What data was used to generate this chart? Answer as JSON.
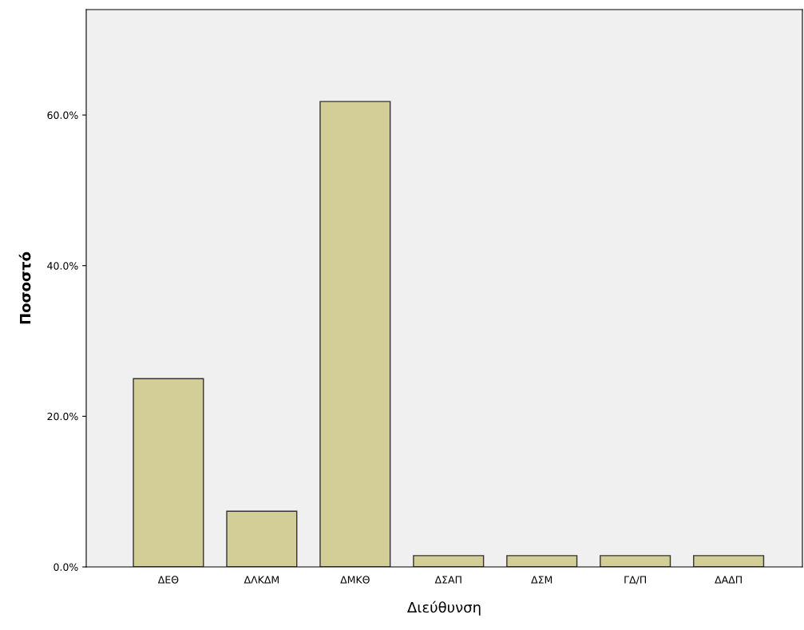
{
  "chart_data": {
    "type": "bar",
    "xlabel": "Διεύθυνση",
    "ylabel": "Ποσοστό",
    "categories": [
      "ΔΕΘ",
      "ΔΛΚΔΜ",
      "ΔΜΚΘ",
      "ΔΣΑΠ",
      "ΔΣΜ",
      "ΓΔ/Π",
      "ΔΑΔΠ"
    ],
    "values": [
      25.0,
      7.4,
      61.8,
      1.5,
      1.5,
      1.5,
      1.5
    ],
    "color": "#d3ce97",
    "ylim": [
      0,
      74
    ],
    "yticks": [
      {
        "value": 0,
        "label": "0.0%"
      },
      {
        "value": 20,
        "label": "20.0%"
      },
      {
        "value": 40,
        "label": "40.0%"
      },
      {
        "value": 60,
        "label": "60.0%"
      }
    ],
    "grid": false
  }
}
